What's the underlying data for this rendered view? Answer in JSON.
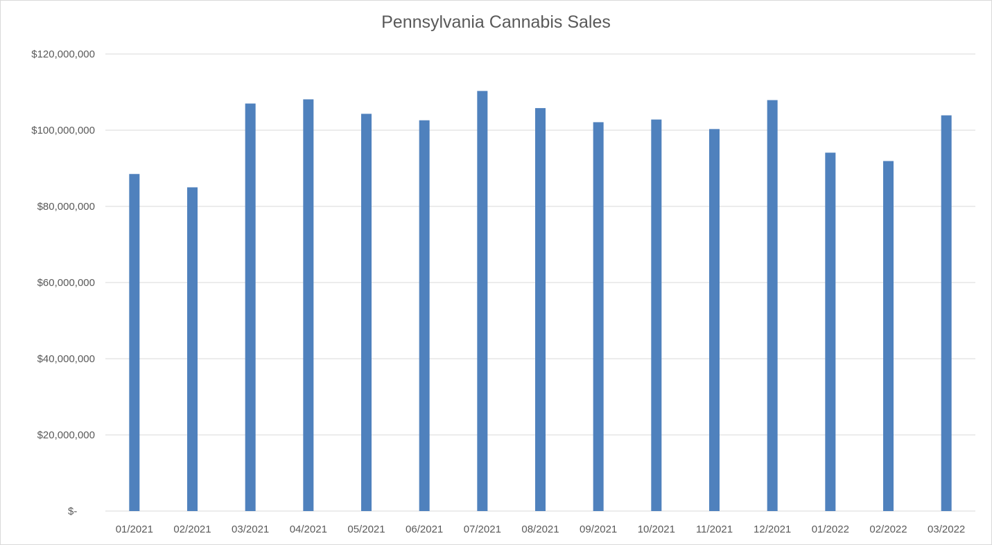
{
  "chart_data": {
    "type": "bar",
    "title": "Pennsylvania Cannabis Sales",
    "xlabel": "",
    "ylabel": "",
    "categories": [
      "01/2021",
      "02/2021",
      "03/2021",
      "04/2021",
      "05/2021",
      "06/2021",
      "07/2021",
      "08/2021",
      "09/2021",
      "10/2021",
      "11/2021",
      "12/2021",
      "01/2022",
      "02/2022",
      "03/2022"
    ],
    "values": [
      88500000,
      85000000,
      107000000,
      108100000,
      104300000,
      102600000,
      110300000,
      105800000,
      102100000,
      102800000,
      100300000,
      107900000,
      94100000,
      91900000,
      103900000
    ],
    "ylim": [
      0,
      120000000
    ],
    "yticks": [
      0,
      20000000,
      40000000,
      60000000,
      80000000,
      100000000,
      120000000
    ],
    "ytick_labels": [
      "$-",
      "$20,000,000",
      "$40,000,000",
      "$60,000,000",
      "$80,000,000",
      "$100,000,000",
      "$120,000,000"
    ],
    "grid": true,
    "legend": "none",
    "bar_color": "#4f81bd"
  }
}
